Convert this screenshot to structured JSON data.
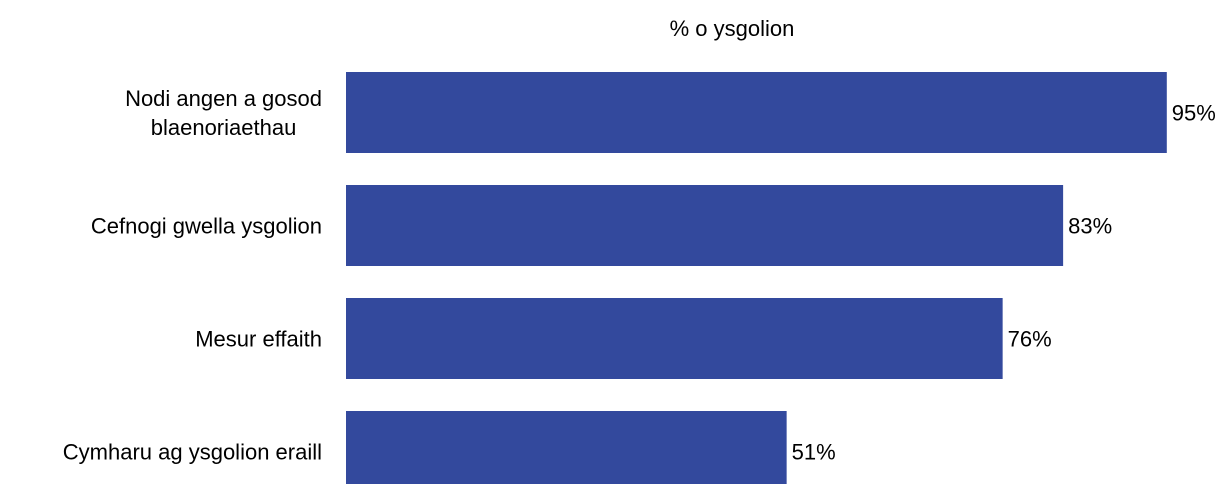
{
  "chart_data": {
    "type": "bar",
    "orientation": "horizontal",
    "title": "% o ysgolion",
    "categories": [
      [
        "Nodi angen a gosod",
        "blaenoriaethau"
      ],
      [
        "Cefnogi gwella ysgolion"
      ],
      [
        "Mesur effaith"
      ],
      [
        "Cymharu ag ysgolion eraill"
      ]
    ],
    "values": [
      95,
      83,
      76,
      51
    ],
    "value_labels": [
      "95%",
      "83%",
      "76%",
      "51%"
    ],
    "xlim": [
      0,
      100
    ],
    "grid": false,
    "legend": "none",
    "bar_color": "#33499d"
  }
}
